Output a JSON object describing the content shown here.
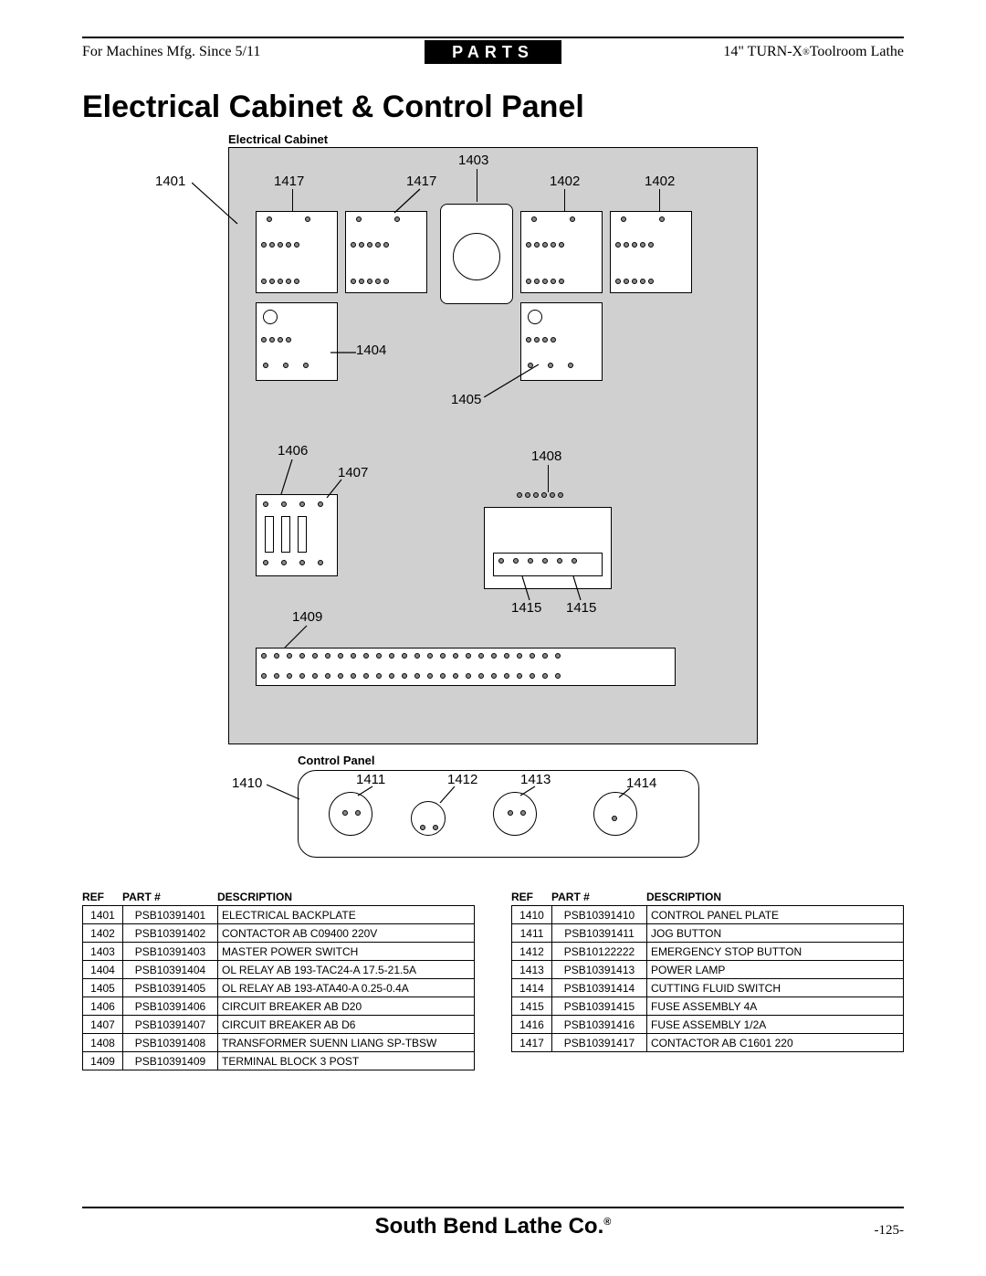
{
  "header": {
    "left": "For Machines Mfg. Since 5/11",
    "center": "PARTS",
    "right_prefix": "14\" TURN-X",
    "right_suffix": " Toolroom Lathe"
  },
  "title": "Electrical Cabinet & Control Panel",
  "diagram": {
    "cabinet_title": "Electrical Cabinet",
    "control_title": "Control Panel",
    "labels": {
      "l1401": "1401",
      "l1402a": "1402",
      "l1402b": "1402",
      "l1403": "1403",
      "l1404": "1404",
      "l1405": "1405",
      "l1406": "1406",
      "l1407": "1407",
      "l1408": "1408",
      "l1409": "1409",
      "l1410": "1410",
      "l1411": "1411",
      "l1412": "1412",
      "l1413": "1413",
      "l1414": "1414",
      "l1415a": "1415",
      "l1415b": "1415",
      "l1417a": "1417",
      "l1417b": "1417"
    }
  },
  "left_table": {
    "h_ref": "REF",
    "h_part": "PART #",
    "h_desc": "DESCRIPTION",
    "rows": [
      {
        "ref": "1401",
        "part": "PSB10391401",
        "desc": "ELECTRICAL BACKPLATE"
      },
      {
        "ref": "1402",
        "part": "PSB10391402",
        "desc": "CONTACTOR AB C09400 220V"
      },
      {
        "ref": "1403",
        "part": "PSB10391403",
        "desc": "MASTER POWER SWITCH"
      },
      {
        "ref": "1404",
        "part": "PSB10391404",
        "desc": "OL RELAY AB 193-TAC24-A 17.5-21.5A"
      },
      {
        "ref": "1405",
        "part": "PSB10391405",
        "desc": "OL RELAY AB 193-ATA40-A 0.25-0.4A"
      },
      {
        "ref": "1406",
        "part": "PSB10391406",
        "desc": "CIRCUIT BREAKER AB D20"
      },
      {
        "ref": "1407",
        "part": "PSB10391407",
        "desc": "CIRCUIT BREAKER AB D6"
      },
      {
        "ref": "1408",
        "part": "PSB10391408",
        "desc": "TRANSFORMER SUENN LIANG SP-TBSW"
      },
      {
        "ref": "1409",
        "part": "PSB10391409",
        "desc": "TERMINAL BLOCK 3 POST"
      }
    ]
  },
  "right_table": {
    "h_ref": "REF",
    "h_part": "PART #",
    "h_desc": "DESCRIPTION",
    "rows": [
      {
        "ref": "1410",
        "part": "PSB10391410",
        "desc": "CONTROL PANEL PLATE"
      },
      {
        "ref": "1411",
        "part": "PSB10391411",
        "desc": "JOG BUTTON"
      },
      {
        "ref": "1412",
        "part": "PSB10122222",
        "desc": "EMERGENCY STOP BUTTON"
      },
      {
        "ref": "1413",
        "part": "PSB10391413",
        "desc": "POWER LAMP"
      },
      {
        "ref": "1414",
        "part": "PSB10391414",
        "desc": "CUTTING FLUID SWITCH"
      },
      {
        "ref": "1415",
        "part": "PSB10391415",
        "desc": "FUSE ASSEMBLY 4A"
      },
      {
        "ref": "1416",
        "part": "PSB10391416",
        "desc": "FUSE ASSEMBLY 1/2A"
      },
      {
        "ref": "1417",
        "part": "PSB10391417",
        "desc": "CONTACTOR AB C1601 220"
      }
    ]
  },
  "footer": {
    "company": "South Bend Lathe Co.",
    "page": "-125-"
  }
}
